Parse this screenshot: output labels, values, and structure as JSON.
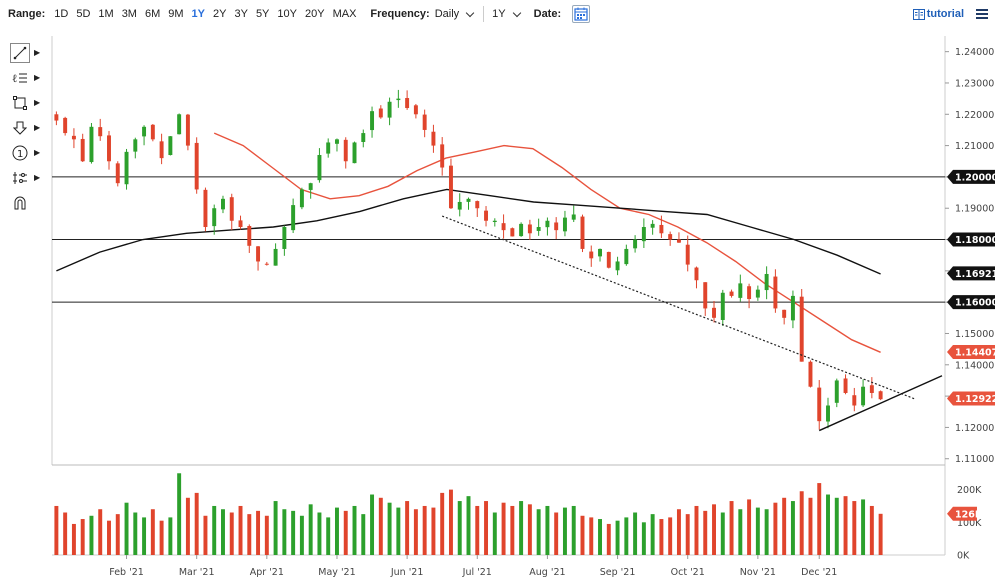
{
  "toolbar": {
    "range_label": "Range:",
    "ranges": [
      "1D",
      "5D",
      "1M",
      "3M",
      "6M",
      "9M",
      "1Y",
      "2Y",
      "3Y",
      "5Y",
      "10Y",
      "20Y",
      "MAX"
    ],
    "active_range": "1Y",
    "frequency_label": "Frequency:",
    "frequency_value": "Daily",
    "period_value": "1Y",
    "date_label": "Date:",
    "tutorial_label": "tutorial"
  },
  "tools": [
    "line-tool-icon",
    "text-tool-icon",
    "rectangle-tool-icon",
    "arrow-tool-icon",
    "number-tool-icon",
    "indicator-tool-icon",
    "magnet-tool-icon"
  ],
  "colors": {
    "up": "#2ca02c",
    "down": "#e0442c",
    "ma_red": "#e8533d",
    "ma_black": "#111111",
    "level_badge": "#111111",
    "last_badge": "#e8533d"
  },
  "chart_data": {
    "type": "candlestick",
    "x_tick_labels": [
      "Feb '21",
      "Mar '21",
      "Apr '21",
      "May '21",
      "Jun '21",
      "Jul '21",
      "Aug '21",
      "Sep '21",
      "Oct '21",
      "Nov '21",
      "Dec '21"
    ],
    "y_tick_labels": [
      "1.24000",
      "1.23000",
      "1.22000",
      "1.21000",
      "1.20000",
      "1.19000",
      "1.18000",
      "1.17000",
      "1.16000",
      "1.15000",
      "1.14000",
      "1.13000",
      "1.12000",
      "1.11000"
    ],
    "ylim": [
      1.108,
      1.245
    ],
    "horizontal_levels": [
      1.2,
      1.18,
      1.16
    ],
    "price_badges": [
      {
        "label": "1.20000",
        "value": 1.2,
        "color": "#111111"
      },
      {
        "label": "1.18000",
        "value": 1.18,
        "color": "#111111"
      },
      {
        "label": "1.16921",
        "value": 1.16921,
        "color": "#111111"
      },
      {
        "label": "1.16000",
        "value": 1.16,
        "color": "#111111"
      },
      {
        "label": "1.14407",
        "value": 1.14407,
        "color": "#e8533d"
      },
      {
        "label": "1.12922",
        "value": 1.12922,
        "color": "#e8533d"
      }
    ],
    "price_path": [
      1.218,
      1.214,
      1.212,
      1.205,
      1.216,
      1.213,
      1.205,
      1.198,
      1.208,
      1.212,
      1.216,
      1.212,
      1.206,
      1.213,
      1.22,
      1.21,
      1.196,
      1.184,
      1.19,
      1.193,
      1.186,
      1.184,
      1.178,
      1.173,
      1.172,
      1.177,
      1.184,
      1.191,
      1.196,
      1.198,
      1.207,
      1.211,
      1.212,
      1.205,
      1.211,
      1.214,
      1.221,
      1.219,
      1.224,
      1.225,
      1.222,
      1.22,
      1.215,
      1.21,
      1.203,
      1.19,
      1.192,
      1.193,
      1.19,
      1.186,
      1.186,
      1.183,
      1.181,
      1.185,
      1.182,
      1.184,
      1.186,
      1.183,
      1.187,
      1.188,
      1.177,
      1.174,
      1.177,
      1.171,
      1.173,
      1.177,
      1.18,
      1.184,
      1.185,
      1.182,
      1.18,
      1.179,
      1.172,
      1.167,
      1.158,
      1.155,
      1.163,
      1.162,
      1.166,
      1.161,
      1.164,
      1.169,
      1.158,
      1.155,
      1.162,
      1.141,
      1.133,
      1.122,
      1.127,
      1.135,
      1.131,
      1.127,
      1.133,
      1.131,
      1.129
    ],
    "ma50_path": [
      1.214,
      1.21,
      1.203,
      1.196,
      1.193,
      1.194,
      1.197,
      1.202,
      1.206,
      1.208,
      1.21,
      1.209,
      1.203,
      1.196,
      1.19,
      1.188,
      1.184,
      1.179,
      1.173,
      1.166,
      1.16,
      1.154,
      1.148,
      1.144
    ],
    "ma200_path": [
      1.17,
      1.176,
      1.18,
      1.182,
      1.183,
      1.184,
      1.186,
      1.189,
      1.193,
      1.196,
      1.194,
      1.192,
      1.191,
      1.19,
      1.189,
      1.188,
      1.184,
      1.18,
      1.175,
      1.169
    ],
    "trendlines": [
      {
        "from_date": "2021-06-18",
        "from_value": 1.1875,
        "to_date": "2021-12-13",
        "to_value": 1.129,
        "style": "dotted"
      },
      {
        "from_date": "2021-11-24",
        "from_value": 1.119,
        "to_date": "2021-12-31",
        "to_value": 1.1365,
        "style": "solid"
      }
    ],
    "volume": {
      "y_tick_labels": [
        "200K",
        "100K",
        "0K"
      ],
      "ylim": [
        0,
        260000
      ],
      "last_label": "126K",
      "values": [
        150,
        130,
        95,
        110,
        120,
        140,
        105,
        125,
        160,
        130,
        115,
        140,
        105,
        115,
        250,
        175,
        190,
        120,
        150,
        140,
        130,
        150,
        125,
        135,
        120,
        165,
        140,
        135,
        120,
        155,
        130,
        115,
        145,
        135,
        150,
        125,
        185,
        175,
        160,
        145,
        165,
        140,
        150,
        145,
        190,
        200,
        165,
        180,
        150,
        165,
        130,
        160,
        150,
        165,
        155,
        140,
        150,
        130,
        145,
        150,
        120,
        115,
        110,
        95,
        105,
        115,
        130,
        100,
        125,
        110,
        115,
        140,
        125,
        150,
        135,
        155,
        130,
        165,
        140,
        170,
        145,
        140,
        160,
        175,
        165,
        195,
        175,
        220,
        185,
        175,
        180,
        165,
        170,
        150,
        126
      ]
    }
  }
}
